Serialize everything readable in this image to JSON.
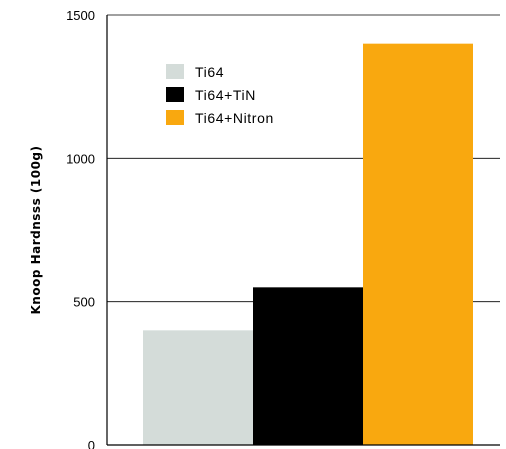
{
  "chart_data": {
    "type": "bar",
    "title": "",
    "xlabel": "",
    "ylabel": "Knoop Hardnsss (100g)",
    "ylim": [
      0,
      1500
    ],
    "yticks": [
      0,
      500,
      1000,
      1500
    ],
    "ytick_labels": [
      "0",
      "500",
      "1000",
      "1500"
    ],
    "grid": true,
    "legend_position": "top-left",
    "series": [
      {
        "name": "Ti64",
        "value": 400,
        "color": "#d4dcd9"
      },
      {
        "name": "Ti64+TiN",
        "value": 550,
        "color": "#000000"
      },
      {
        "name": "Ti64+Nitron",
        "value": 1400,
        "color": "#f9a80f"
      }
    ]
  }
}
